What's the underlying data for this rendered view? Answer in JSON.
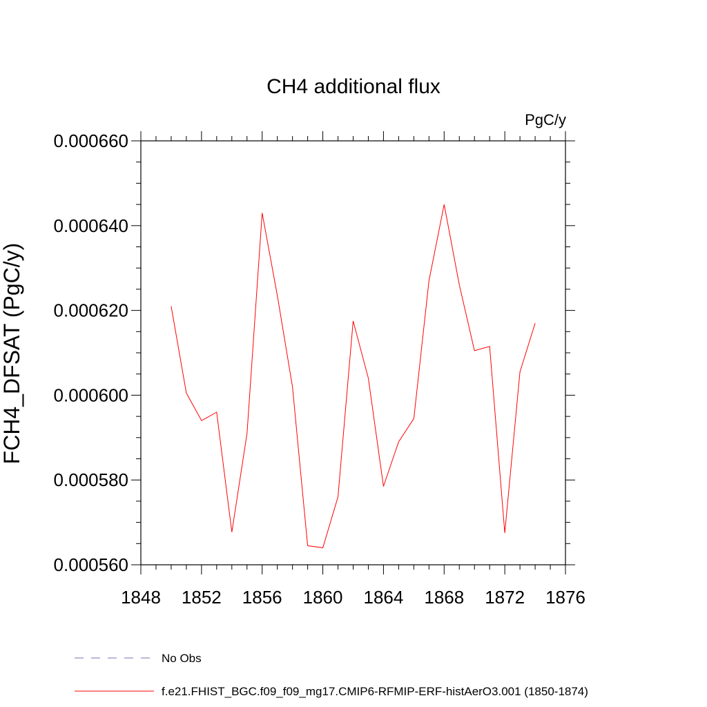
{
  "chart_data": {
    "type": "line",
    "title": "CH4 additional flux",
    "units_label": "PgC/y",
    "ylabel": "FCH4_DFSAT  (PgC/y)",
    "xlabel": "",
    "xlim": [
      1848,
      1876
    ],
    "ylim": [
      0.00056,
      0.00066
    ],
    "x_ticks": [
      1848,
      1852,
      1856,
      1860,
      1864,
      1868,
      1872,
      1876
    ],
    "x_tick_labels": [
      "1848",
      "1852",
      "1856",
      "1860",
      "1864",
      "1868",
      "1872",
      "1876"
    ],
    "y_ticks": [
      0.00056,
      0.00058,
      0.0006,
      0.00062,
      0.00064,
      0.00066
    ],
    "y_tick_labels": [
      "0.000560",
      "0.000580",
      "0.000600",
      "0.000620",
      "0.000640",
      "0.000660"
    ],
    "grid": false,
    "legend_position": "bottom-left",
    "series": [
      {
        "name": "f.e21.FHIST_BGC.f09_f09_mg17.CMIP6-RFMIP-ERF-histAerO3.001 (1850-1874)",
        "color": "#ff0000",
        "style": "solid",
        "x": [
          1850,
          1851,
          1852,
          1853,
          1854,
          1855,
          1856,
          1857,
          1858,
          1859,
          1860,
          1861,
          1862,
          1863,
          1864,
          1865,
          1866,
          1867,
          1868,
          1869,
          1870,
          1871,
          1872,
          1873,
          1874
        ],
        "values": [
          0.000621,
          0.0006005,
          0.000594,
          0.000596,
          0.0005677,
          0.000591,
          0.000643,
          0.0006235,
          0.000602,
          0.0005645,
          0.000564,
          0.000576,
          0.0006175,
          0.000604,
          0.0005785,
          0.000589,
          0.0005945,
          0.000627,
          0.000645,
          0.000626,
          0.0006105,
          0.0006115,
          0.0005675,
          0.0006055,
          0.000617
        ]
      }
    ],
    "legend_entries": [
      {
        "label": "No Obs",
        "color": "#7a6fb3",
        "style": "dashed"
      },
      {
        "label": "f.e21.FHIST_BGC.f09_f09_mg17.CMIP6-RFMIP-ERF-histAerO3.001 (1850-1874)",
        "color": "#ff0000",
        "style": "solid"
      }
    ]
  }
}
